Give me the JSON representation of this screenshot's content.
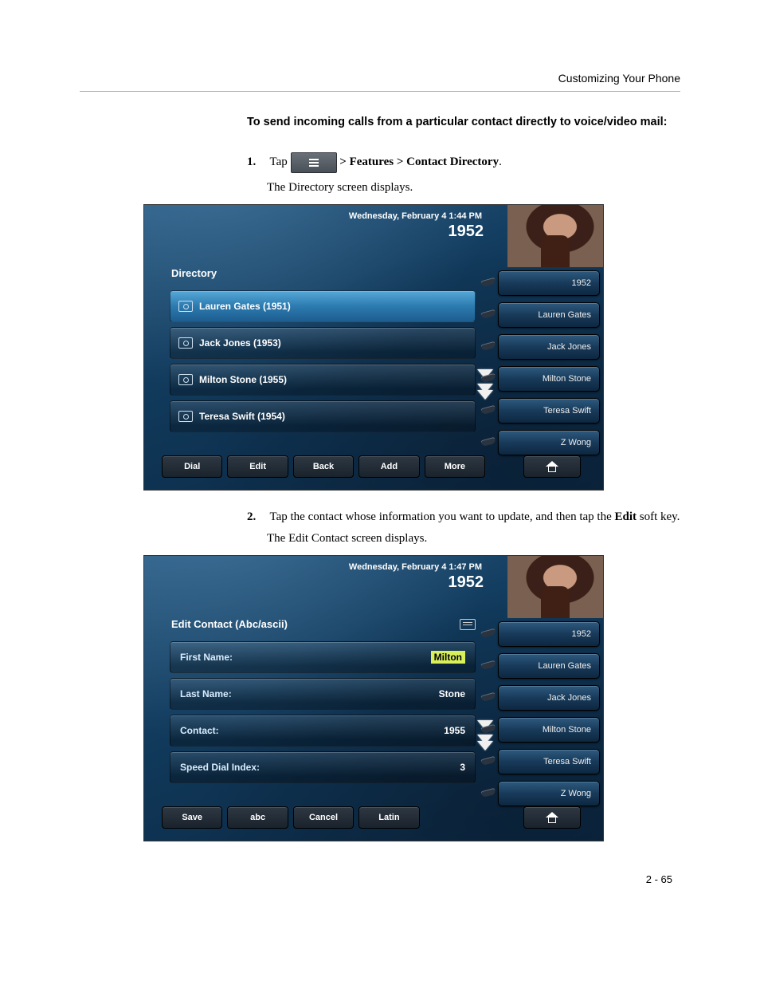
{
  "header": {
    "running_title": "Customizing Your Phone"
  },
  "section": {
    "heading": "To send incoming calls from a particular contact directly to voice/video mail:"
  },
  "step1": {
    "num": "1.",
    "tap_text": "Tap",
    "path": " > Features > Contact Directory",
    "period": ".",
    "result": "The Directory screen displays."
  },
  "step2": {
    "num": "2.",
    "text_a": "Tap the contact whose information you want to update, and then tap the ",
    "bold": "Edit",
    "text_b": " soft key.",
    "result": "The Edit Contact screen displays."
  },
  "shot1": {
    "datetime": "Wednesday, February 4  1:44 PM",
    "extension": "1952",
    "main_title": "Directory",
    "rows": [
      "Lauren Gates (1951)",
      "Jack Jones (1953)",
      "Milton Stone (1955)",
      "Teresa Swift (1954)"
    ],
    "side": [
      "1952",
      "Lauren Gates",
      "Jack Jones",
      "Milton Stone",
      "Teresa Swift",
      "Z Wong"
    ],
    "softkeys": [
      "Dial",
      "Edit",
      "Back",
      "Add",
      "More"
    ]
  },
  "shot2": {
    "datetime": "Wednesday, February 4  1:47 PM",
    "extension": "1952",
    "main_title": "Edit Contact (Abc/ascii)",
    "fields": [
      {
        "label": "First Name:",
        "value": "Milton",
        "highlight": true
      },
      {
        "label": "Last Name:",
        "value": "Stone",
        "highlight": false
      },
      {
        "label": "Contact:",
        "value": "1955",
        "highlight": false
      },
      {
        "label": "Speed Dial Index:",
        "value": "3",
        "highlight": false
      }
    ],
    "side": [
      "1952",
      "Lauren Gates",
      "Jack Jones",
      "Milton Stone",
      "Teresa Swift",
      "Z Wong"
    ],
    "softkeys": [
      "Save",
      "abc",
      "Cancel",
      "Latin"
    ]
  },
  "footer": {
    "page_num": "2 - 65"
  },
  "colors": {
    "bg_top": "#2a5b82",
    "bg_bottom": "#0a2640",
    "row_selected_top": "#56a8d8",
    "row_selected_bottom": "#1d5d8f",
    "highlight_bg": "#d8f05a",
    "softkey_top": "#2e3842",
    "softkey_bottom": "#1a232c"
  }
}
